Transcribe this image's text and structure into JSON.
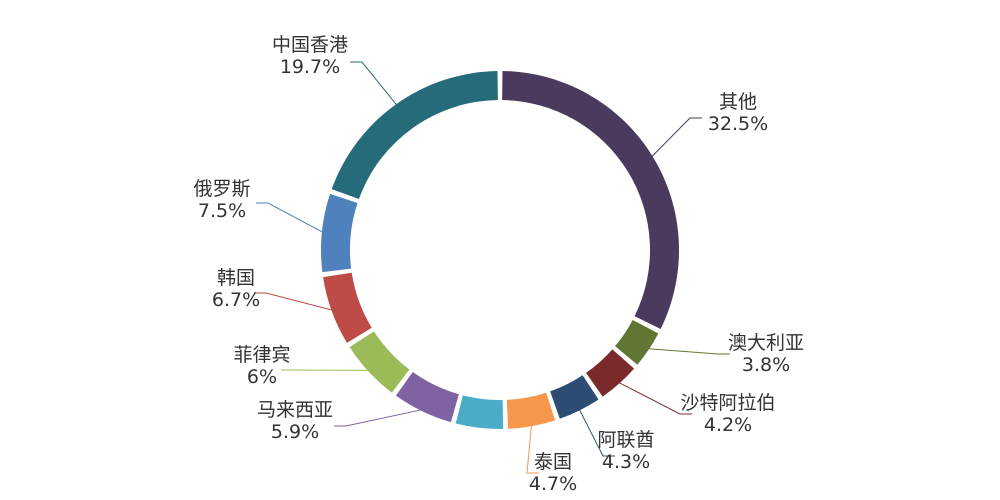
{
  "chart_data": {
    "type": "pie",
    "variant": "donut",
    "title": "",
    "legend": "none",
    "slices": [
      {
        "label": "其他",
        "value": 32.5,
        "display": "32.5%",
        "color": "#4A3A5E"
      },
      {
        "label": "澳大利亚",
        "value": 3.8,
        "display": "3.8%",
        "color": "#617632"
      },
      {
        "label": "沙特阿拉伯",
        "value": 4.2,
        "display": "4.2%",
        "color": "#7A2A2B"
      },
      {
        "label": "阿联酋",
        "value": 4.3,
        "display": "4.3%",
        "color": "#2C4C74"
      },
      {
        "label": "泰国",
        "value": 4.7,
        "display": "4.7%",
        "color": "#F6974B"
      },
      {
        "label": "",
        "value": 4.7,
        "display": "",
        "color": "#4AACC6"
      },
      {
        "label": "马来西亚",
        "value": 5.9,
        "display": "5.9%",
        "color": "#7F62A1"
      },
      {
        "label": "菲律宾",
        "value": 6.0,
        "display": "6%",
        "color": "#9BBB58"
      },
      {
        "label": "韩国",
        "value": 6.7,
        "display": "6.7%",
        "color": "#BE4B48"
      },
      {
        "label": "俄罗斯",
        "value": 7.5,
        "display": "7.5%",
        "color": "#4F81BD"
      },
      {
        "label": "中国香港",
        "value": 19.7,
        "display": "19.7%",
        "color": "#256B7A"
      }
    ]
  }
}
